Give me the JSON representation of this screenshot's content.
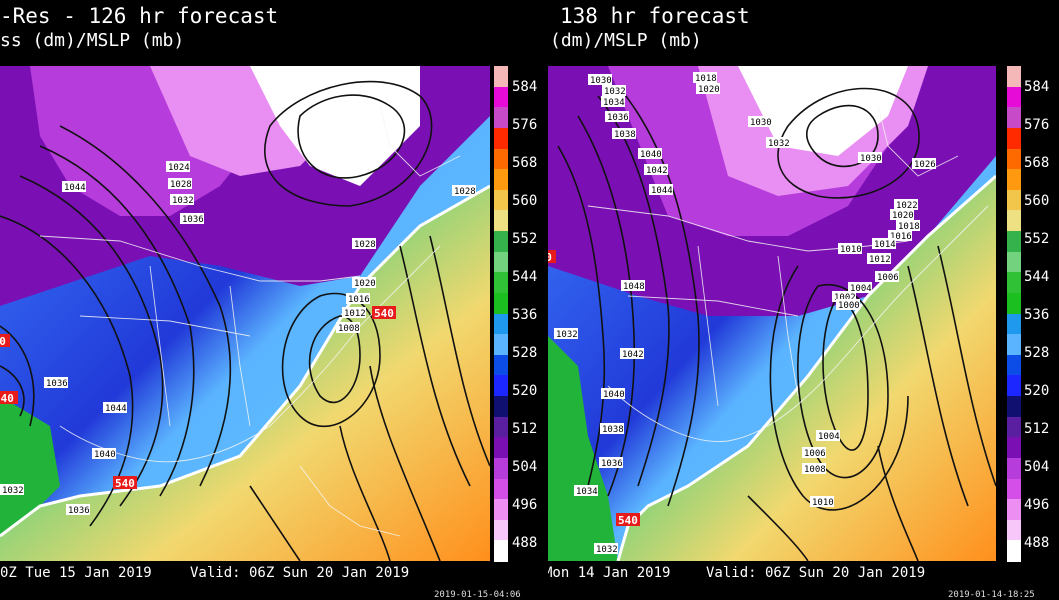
{
  "panels": [
    {
      "title": "-Res - 126 hr forecast",
      "subtitle": "ss (dm)/MSLP (mb)",
      "init_text": "0Z Tue 15 Jan 2019",
      "valid_text": "Valid: 06Z Sun 20 Jan 2019",
      "stamp": "2019-01-15-04:06",
      "isobar_labels": [
        "1044",
        "1024",
        "1028",
        "1032",
        "1036",
        "1028",
        "1020",
        "1016",
        "1012",
        "1008",
        "1036",
        "1044",
        "1040",
        "1032",
        "1036",
        "1032",
        "1028",
        "1012",
        "1028"
      ],
      "thickness_labels": [
        "540",
        "540",
        "540",
        "540"
      ]
    },
    {
      "title": "138 hr forecast",
      "subtitle": "(dm)/MSLP (mb)",
      "init_text": "Mon 14 Jan 2019",
      "valid_text": "Valid: 06Z Sun 20 Jan 2019",
      "stamp": "2019-01-14-18:25",
      "isobar_labels": [
        "1030",
        "1032",
        "1034",
        "1036",
        "1018",
        "1020",
        "1038",
        "1040",
        "1042",
        "1044",
        "1030",
        "1032",
        "1030",
        "1026",
        "1022",
        "1020",
        "1018",
        "1016",
        "1014",
        "1010",
        "1012",
        "1006",
        "1004",
        "1002",
        "1000",
        "1048",
        "1032",
        "1042",
        "1040",
        "1038",
        "1036",
        "1034",
        "1032",
        "1004",
        "1006",
        "1008",
        "1010"
      ],
      "thickness_labels": [
        "540",
        "540"
      ]
    }
  ],
  "colorbar": {
    "labels": [
      "584",
      "576",
      "568",
      "560",
      "552",
      "544",
      "536",
      "528",
      "520",
      "512",
      "504",
      "496",
      "488"
    ],
    "colors": [
      "#f4b8b8",
      "#e60bd6",
      "#c74ac9",
      "#ff2a00",
      "#ff6a00",
      "#ff9a10",
      "#f2c64b",
      "#eee184",
      "#36b24c",
      "#72d27d",
      "#31c137",
      "#1bbf20",
      "#1f99ee",
      "#5bb4ff",
      "#0b4de6",
      "#1c26ff",
      "#101070",
      "#5a1ea0",
      "#7a10b4",
      "#b63ddc",
      "#d44fe8",
      "#ec8ef2",
      "#f8c7fa",
      "#ffffff"
    ]
  },
  "colors": {
    "cold_deep": "#4a1a7a",
    "cold_mid": "#1e3ef0",
    "cool": "#3aa0ff",
    "freeze_line": "#ffffff",
    "mild": "#2bb33a",
    "warm": "#f2d36a",
    "hot": "#ff8c1a",
    "polar": "#e98ef2"
  }
}
